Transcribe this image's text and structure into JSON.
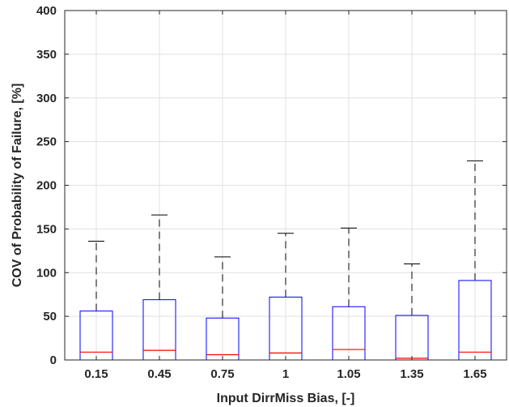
{
  "chart_data": {
    "type": "box",
    "xlabel": "Input DirrMiss Bias, [-]",
    "ylabel": "COV of Probability of Failure, [%]",
    "ylim": [
      0,
      400
    ],
    "yticks": [
      "0",
      "50",
      "100",
      "150",
      "200",
      "250",
      "300",
      "350",
      "400"
    ],
    "categories": [
      "0.15",
      "0.45",
      "0.75",
      "1",
      "1.05",
      "1.35",
      "1.65"
    ],
    "boxes": [
      {
        "min": 0,
        "q1": 0,
        "median": 9,
        "q3": 56,
        "max": 136
      },
      {
        "min": 0,
        "q1": 0,
        "median": 11,
        "q3": 69,
        "max": 166
      },
      {
        "min": 0,
        "q1": 0,
        "median": 6,
        "q3": 48,
        "max": 118
      },
      {
        "min": 0,
        "q1": 0,
        "median": 8,
        "q3": 72,
        "max": 145
      },
      {
        "min": 0,
        "q1": 0,
        "median": 12,
        "q3": 61,
        "max": 151
      },
      {
        "min": 0,
        "q1": 0,
        "median": 2,
        "q3": 51,
        "max": 110
      },
      {
        "min": 0,
        "q1": 0,
        "median": 9,
        "q3": 91,
        "max": 228
      }
    ],
    "grid": true,
    "colors": {
      "box": "#0000ff",
      "median": "#ff0000",
      "whisker": "#000000",
      "grid": "#e0e0e0",
      "axis": "#262626"
    }
  }
}
